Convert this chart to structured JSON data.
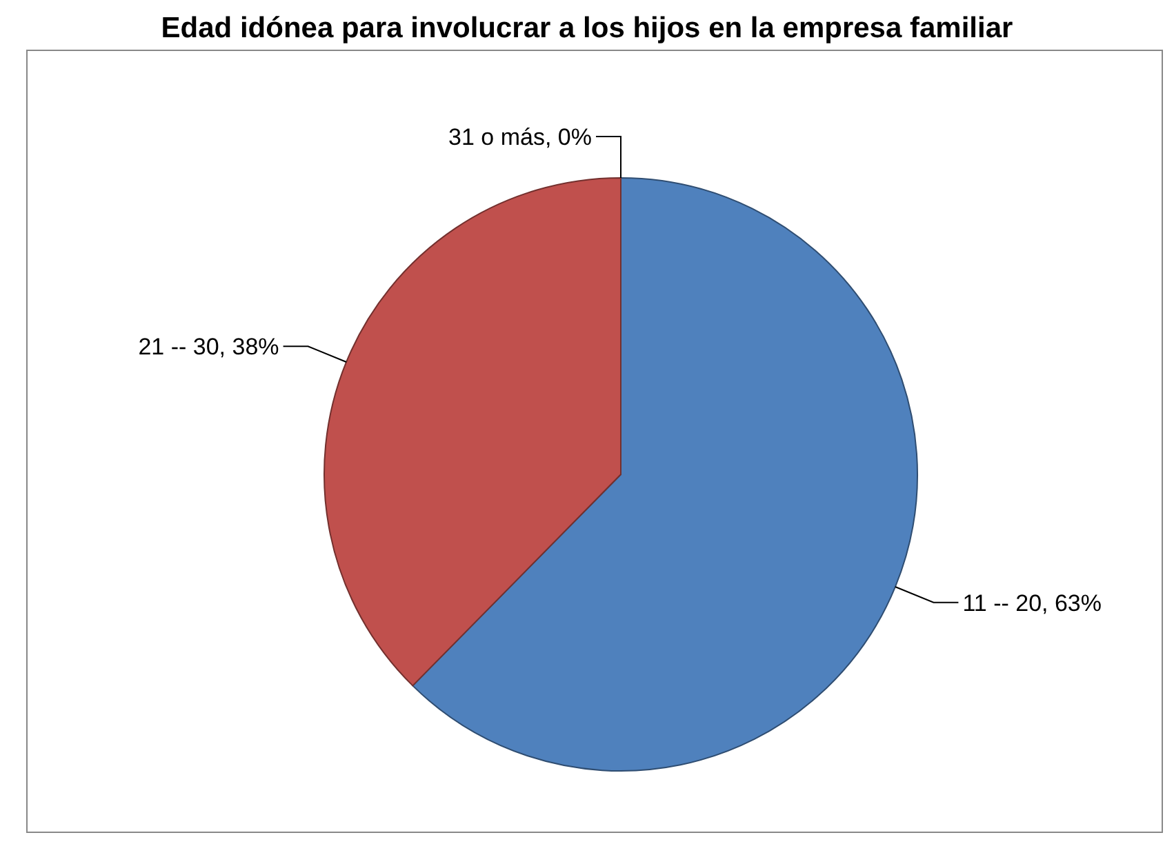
{
  "chart_data": {
    "type": "pie",
    "title": "Edad idónea para involucrar a los hijos en la empresa familiar",
    "categories": [
      "11 -- 20",
      "21 -- 30",
      "31 o más"
    ],
    "values": [
      63,
      38,
      0
    ],
    "value_labels": [
      ", 63%",
      ", 38%",
      ", 0%"
    ],
    "colors": [
      "#4f81bd",
      "#c0504d",
      "#9bbb59"
    ],
    "legend": false
  }
}
